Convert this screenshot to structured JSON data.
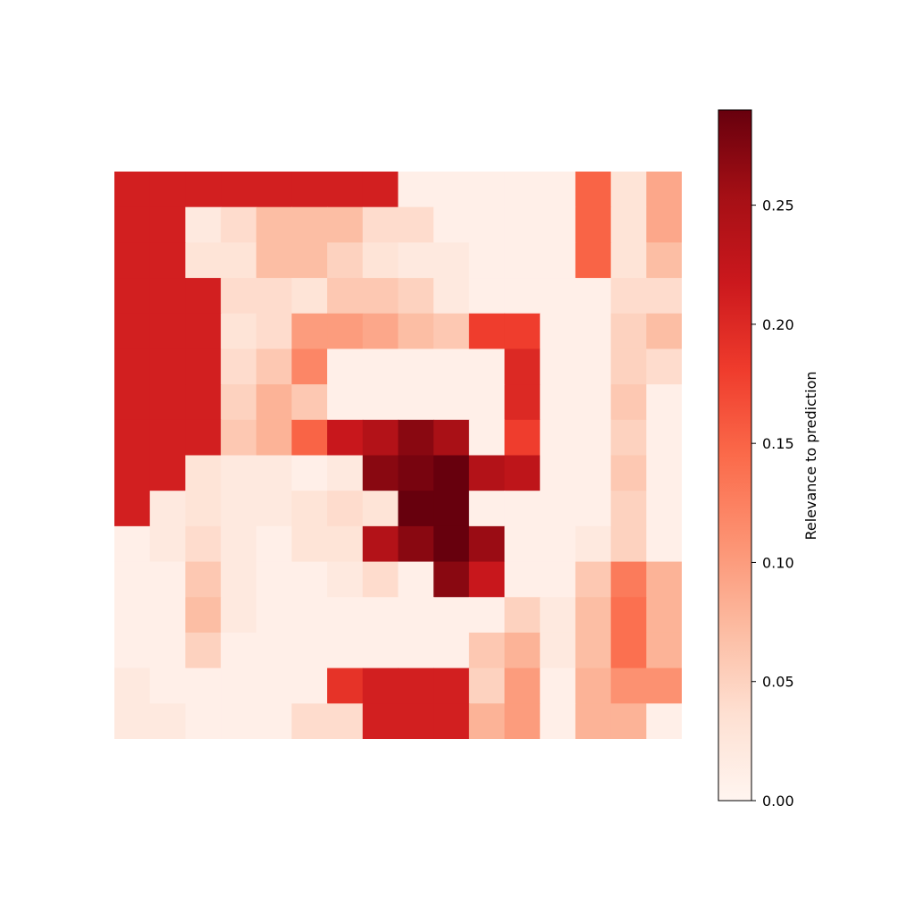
{
  "chart_data": {
    "type": "heatmap",
    "title": "",
    "xlabel": "",
    "ylabel": "",
    "axes_visible": false,
    "colormap": "Reds",
    "colormap_stops": [
      "#fff5f0",
      "#fee0d2",
      "#fcbba1",
      "#fc9272",
      "#fb6a4a",
      "#ef3b2c",
      "#cb181d",
      "#a50f15",
      "#67000d"
    ],
    "value_range": [
      0.0,
      0.29
    ],
    "grid_shape": [
      16,
      16
    ],
    "values": [
      [
        0.21,
        0.21,
        0.21,
        0.21,
        0.21,
        0.21,
        0.21,
        0.21,
        0.01,
        0.01,
        0.01,
        0.01,
        0.01,
        0.15,
        0.03,
        0.09
      ],
      [
        0.21,
        0.21,
        0.02,
        0.04,
        0.07,
        0.07,
        0.07,
        0.04,
        0.04,
        0.01,
        0.01,
        0.01,
        0.01,
        0.15,
        0.03,
        0.09
      ],
      [
        0.21,
        0.21,
        0.03,
        0.03,
        0.07,
        0.07,
        0.05,
        0.03,
        0.02,
        0.02,
        0.01,
        0.01,
        0.01,
        0.15,
        0.03,
        0.07
      ],
      [
        0.21,
        0.21,
        0.21,
        0.04,
        0.04,
        0.03,
        0.06,
        0.06,
        0.05,
        0.02,
        0.01,
        0.01,
        0.01,
        0.01,
        0.04,
        0.04
      ],
      [
        0.21,
        0.21,
        0.21,
        0.03,
        0.04,
        0.1,
        0.1,
        0.09,
        0.07,
        0.06,
        0.18,
        0.18,
        0.01,
        0.01,
        0.05,
        0.07
      ],
      [
        0.21,
        0.21,
        0.21,
        0.04,
        0.06,
        0.12,
        0.01,
        0.01,
        0.01,
        0.01,
        0.01,
        0.2,
        0.01,
        0.01,
        0.05,
        0.04
      ],
      [
        0.21,
        0.21,
        0.21,
        0.05,
        0.08,
        0.06,
        0.01,
        0.01,
        0.01,
        0.01,
        0.01,
        0.2,
        0.01,
        0.01,
        0.06,
        0.01
      ],
      [
        0.21,
        0.21,
        0.21,
        0.06,
        0.08,
        0.15,
        0.22,
        0.24,
        0.27,
        0.25,
        0.01,
        0.18,
        0.01,
        0.01,
        0.05,
        0.01
      ],
      [
        0.21,
        0.21,
        0.03,
        0.02,
        0.02,
        0.01,
        0.02,
        0.27,
        0.28,
        0.29,
        0.24,
        0.23,
        0.01,
        0.01,
        0.06,
        0.01
      ],
      [
        0.21,
        0.02,
        0.03,
        0.02,
        0.02,
        0.03,
        0.04,
        0.03,
        0.29,
        0.29,
        0.01,
        0.01,
        0.01,
        0.01,
        0.05,
        0.01
      ],
      [
        0.01,
        0.02,
        0.04,
        0.02,
        0.01,
        0.03,
        0.03,
        0.24,
        0.27,
        0.29,
        0.26,
        0.01,
        0.01,
        0.02,
        0.05,
        0.01
      ],
      [
        0.01,
        0.01,
        0.06,
        0.02,
        0.01,
        0.01,
        0.02,
        0.04,
        0.01,
        0.27,
        0.22,
        0.01,
        0.01,
        0.06,
        0.13,
        0.08
      ],
      [
        0.01,
        0.01,
        0.07,
        0.02,
        0.01,
        0.01,
        0.01,
        0.01,
        0.01,
        0.01,
        0.01,
        0.05,
        0.02,
        0.07,
        0.14,
        0.08
      ],
      [
        0.01,
        0.01,
        0.05,
        0.01,
        0.01,
        0.01,
        0.01,
        0.01,
        0.01,
        0.01,
        0.06,
        0.08,
        0.02,
        0.07,
        0.14,
        0.08
      ],
      [
        0.02,
        0.01,
        0.01,
        0.01,
        0.01,
        0.01,
        0.19,
        0.21,
        0.21,
        0.21,
        0.05,
        0.1,
        0.01,
        0.08,
        0.11,
        0.11
      ],
      [
        0.02,
        0.02,
        0.01,
        0.01,
        0.01,
        0.04,
        0.04,
        0.21,
        0.21,
        0.21,
        0.08,
        0.1,
        0.01,
        0.08,
        0.08,
        0.01
      ]
    ],
    "colorbar": {
      "label": "Relevance to prediction",
      "ticks": [
        0.0,
        0.05,
        0.1,
        0.15,
        0.2,
        0.25
      ],
      "tick_labels": [
        "0.00",
        "0.05",
        "0.10",
        "0.15",
        "0.20",
        "0.25"
      ],
      "min": 0.0,
      "max": 0.29
    }
  }
}
